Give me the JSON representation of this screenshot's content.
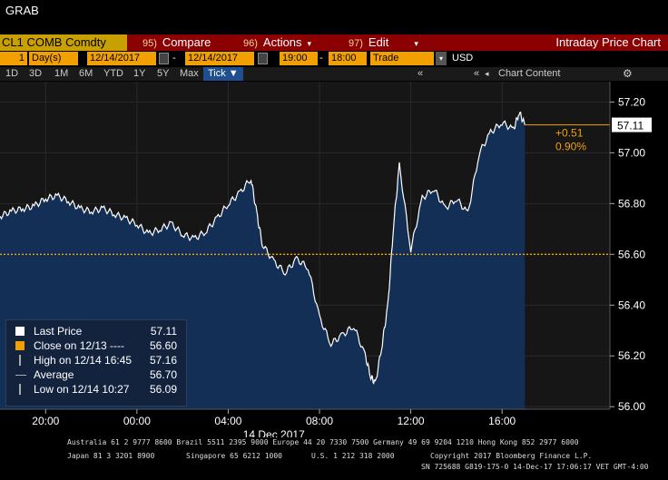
{
  "window_title": "GRAB",
  "toolbar": {
    "ticker": "CL1 COMB Comdty",
    "compare_num": "95)",
    "compare_label": "Compare",
    "actions_num": "96)",
    "actions_label": "Actions",
    "edit_num": "97)",
    "edit_label": "Edit",
    "chart_title": "Intraday Price Chart"
  },
  "controls": {
    "days_value": "1",
    "days_unit": "Day(s)",
    "start_date": "12/14/2017",
    "end_date": "12/14/2017",
    "start_time": "19:00",
    "end_time": "18:00",
    "price_type": "Trade",
    "currency": "USD"
  },
  "periods": [
    "1D",
    "3D",
    "1M",
    "6M",
    "YTD",
    "1Y",
    "5Y",
    "Max"
  ],
  "tick_label": "Tick ▼",
  "chart_content_label": "Chart Content",
  "icons": {
    "gear": "gear-icon",
    "calendar": "calendar-icon",
    "collapse": "chevron-double-left-icon"
  },
  "colors": {
    "line": "#ffffff",
    "fill": "#14305a",
    "close_line": "#f2a000",
    "last_price_box": "#ffffff",
    "change_text": "#f2a000"
  },
  "chart_data": {
    "type": "area",
    "date_label": "14 Dec 2017",
    "x_ticks": [
      "20:00",
      "00:00",
      "04:00",
      "08:00",
      "12:00",
      "16:00"
    ],
    "y_ticks": [
      "56.00",
      "56.20",
      "56.40",
      "56.60",
      "56.80",
      "57.00",
      "57.20"
    ],
    "ylim": [
      55.99,
      57.28
    ],
    "x_range_hours": [
      "18:00",
      "18:00"
    ],
    "series": [
      {
        "x": [
          "18:00",
          "18:30",
          "19:00",
          "19:30",
          "20:00",
          "20:30",
          "21:00",
          "21:30",
          "22:00",
          "22:30",
          "23:00",
          "23:30",
          "00:00",
          "00:30",
          "01:00",
          "01:30",
          "02:00",
          "02:30",
          "03:00",
          "03:30",
          "04:00",
          "04:30",
          "05:00",
          "05:15",
          "05:30",
          "06:00",
          "06:30",
          "07:00",
          "07:30",
          "08:00",
          "08:30",
          "09:00",
          "09:30",
          "10:00",
          "10:15",
          "10:27",
          "10:45",
          "11:00",
          "11:15",
          "11:30",
          "12:00",
          "12:30",
          "13:00",
          "13:30",
          "14:00",
          "14:30",
          "15:00",
          "15:30",
          "16:00",
          "16:30",
          "16:45",
          "17:00"
        ],
        "values": [
          56.75,
          56.77,
          56.78,
          56.79,
          56.82,
          56.83,
          56.81,
          56.78,
          56.77,
          56.78,
          56.76,
          56.74,
          56.72,
          56.68,
          56.7,
          56.72,
          56.68,
          56.66,
          56.69,
          56.74,
          56.8,
          56.84,
          56.9,
          56.76,
          56.64,
          56.57,
          56.53,
          56.58,
          56.55,
          56.35,
          56.25,
          56.28,
          56.32,
          56.2,
          56.12,
          56.09,
          56.25,
          56.4,
          56.72,
          56.95,
          56.62,
          56.82,
          56.86,
          56.78,
          56.82,
          56.76,
          57.0,
          57.08,
          57.12,
          57.09,
          57.16,
          57.11
        ]
      }
    ],
    "last_price": 57.11,
    "prev_close": 56.6,
    "change": "+0.51",
    "change_pct": "0.90%",
    "last_price_label": "57.11"
  },
  "legend": {
    "last_price_label": "Last Price",
    "last_price_value": "57.11",
    "close_label": "Close on 12/13 ----",
    "close_value": "56.60",
    "high_label": "High on 12/14 16:45",
    "high_value": "57.16",
    "average_label": "Average",
    "average_value": "56.70",
    "low_label": "Low on 12/14 10:27",
    "low_value": "56.09"
  },
  "footer": {
    "line1": "Australia 61 2 9777 8600 Brazil 5511 2395 9000 Europe 44 20 7330 7500 Germany 49 69 9204 1210 Hong Kong 852 2977 6000",
    "line2a": "Japan 81 3 3201 8900",
    "line2b": "Singapore 65 6212 1000",
    "line2c": "U.S. 1 212 318 2000",
    "line2d": "Copyright 2017 Bloomberg Finance L.P.",
    "line3": "SN 725688 G819-175-0 14-Dec-17 17:06:17 VET  GMT-4:00"
  }
}
